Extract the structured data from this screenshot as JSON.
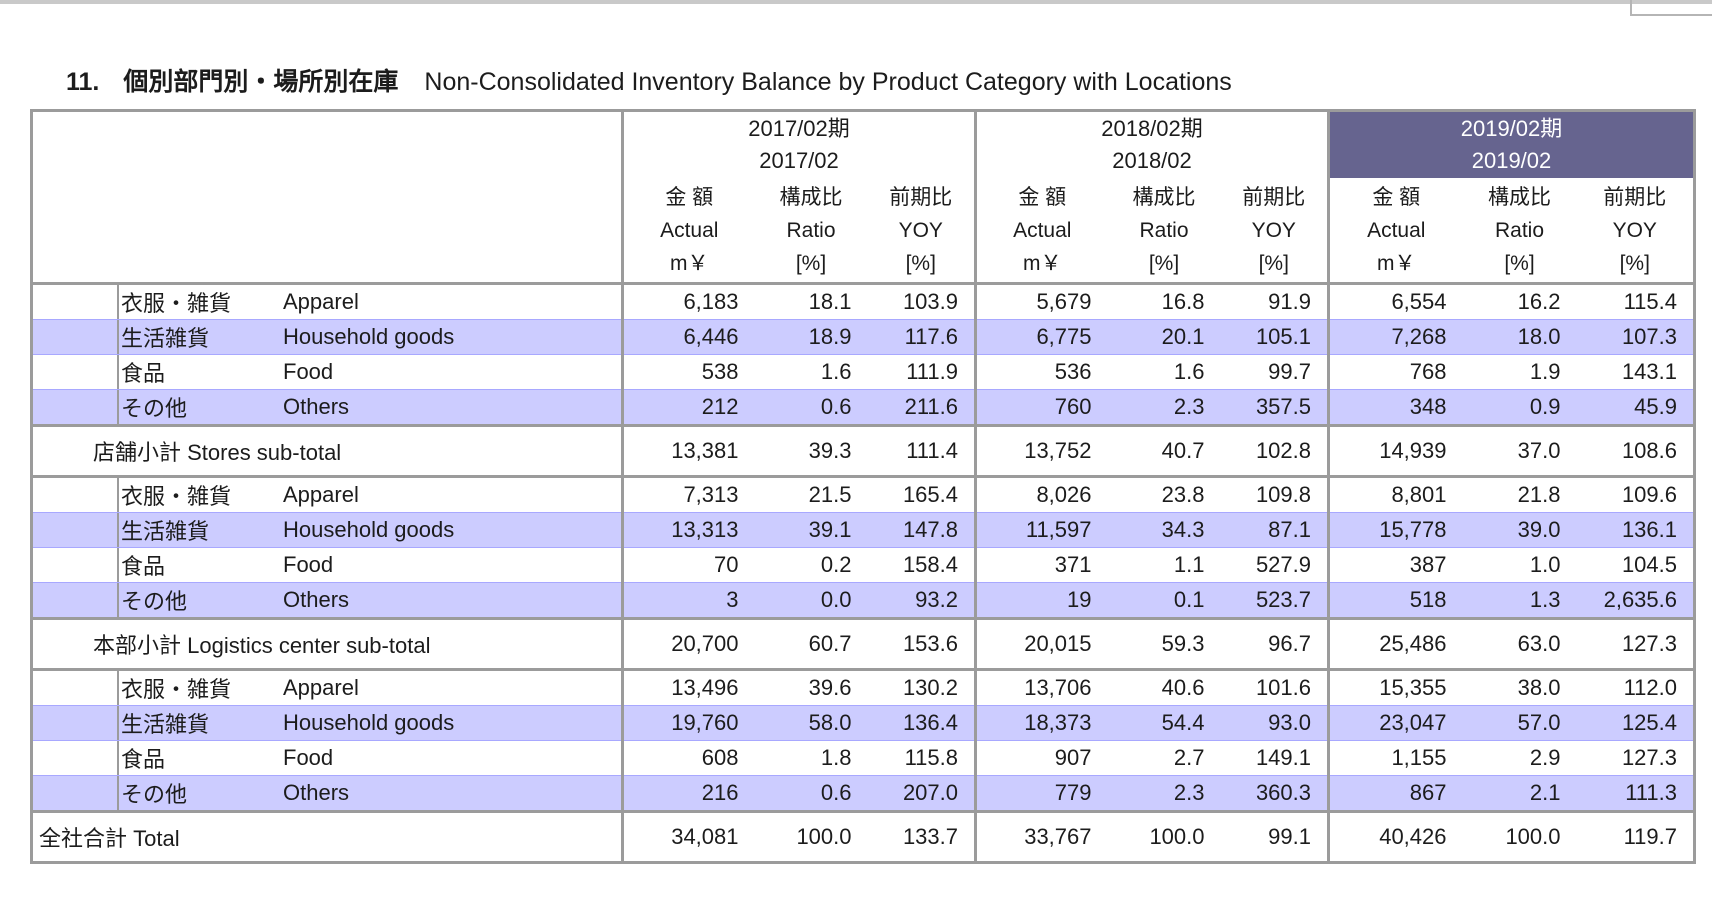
{
  "title": {
    "number": "11.",
    "jp": "個別部門別・場所別在庫",
    "en": "Non-Consolidated Inventory Balance by Product Category with Locations"
  },
  "periods": [
    {
      "jp": "2017/02期",
      "en": "2017/02",
      "highlight": false
    },
    {
      "jp": "2018/02期",
      "en": "2018/02",
      "highlight": false
    },
    {
      "jp": "2019/02期",
      "en": "2019/02",
      "highlight": true
    }
  ],
  "columns": [
    {
      "jp": "金 額",
      "en": "Actual",
      "unit": "m￥"
    },
    {
      "jp": "構成比",
      "en": "Ratio",
      "unit": "[%]"
    },
    {
      "jp": "前期比",
      "en": "YOY",
      "unit": "[%]"
    }
  ],
  "groups": [
    {
      "rows": [
        {
          "jp": "衣服・雑貨",
          "en": "Apparel",
          "band": false,
          "values": [
            "6,183",
            "18.1",
            "103.9",
            "5,679",
            "16.8",
            "91.9",
            "6,554",
            "16.2",
            "115.4"
          ]
        },
        {
          "jp": "生活雑貨",
          "en": "Household goods",
          "band": true,
          "values": [
            "6,446",
            "18.9",
            "117.6",
            "6,775",
            "20.1",
            "105.1",
            "7,268",
            "18.0",
            "107.3"
          ]
        },
        {
          "jp": "食品",
          "en": "Food",
          "band": false,
          "values": [
            "538",
            "1.6",
            "111.9",
            "536",
            "1.6",
            "99.7",
            "768",
            "1.9",
            "143.1"
          ]
        },
        {
          "jp": "その他",
          "en": "Others",
          "band": true,
          "values": [
            "212",
            "0.6",
            "211.6",
            "760",
            "2.3",
            "357.5",
            "348",
            "0.9",
            "45.9"
          ]
        }
      ],
      "subtotal": {
        "label": "店舗小計 Stores sub-total",
        "values": [
          "13,381",
          "39.3",
          "111.4",
          "13,752",
          "40.7",
          "102.8",
          "14,939",
          "37.0",
          "108.6"
        ]
      }
    },
    {
      "rows": [
        {
          "jp": "衣服・雑貨",
          "en": "Apparel",
          "band": false,
          "values": [
            "7,313",
            "21.5",
            "165.4",
            "8,026",
            "23.8",
            "109.8",
            "8,801",
            "21.8",
            "109.6"
          ]
        },
        {
          "jp": "生活雑貨",
          "en": "Household goods",
          "band": true,
          "values": [
            "13,313",
            "39.1",
            "147.8",
            "11,597",
            "34.3",
            "87.1",
            "15,778",
            "39.0",
            "136.1"
          ]
        },
        {
          "jp": "食品",
          "en": "Food",
          "band": false,
          "values": [
            "70",
            "0.2",
            "158.4",
            "371",
            "1.1",
            "527.9",
            "387",
            "1.0",
            "104.5"
          ]
        },
        {
          "jp": "その他",
          "en": "Others",
          "band": true,
          "values": [
            "3",
            "0.0",
            "93.2",
            "19",
            "0.1",
            "523.7",
            "518",
            "1.3",
            "2,635.6"
          ]
        }
      ],
      "subtotal": {
        "label": "本部小計 Logistics center sub-total",
        "values": [
          "20,700",
          "60.7",
          "153.6",
          "20,015",
          "59.3",
          "96.7",
          "25,486",
          "63.0",
          "127.3"
        ]
      }
    },
    {
      "rows": [
        {
          "jp": "衣服・雑貨",
          "en": "Apparel",
          "band": false,
          "values": [
            "13,496",
            "39.6",
            "130.2",
            "13,706",
            "40.6",
            "101.6",
            "15,355",
            "38.0",
            "112.0"
          ]
        },
        {
          "jp": "生活雑貨",
          "en": "Household goods",
          "band": true,
          "values": [
            "19,760",
            "58.0",
            "136.4",
            "18,373",
            "54.4",
            "93.0",
            "23,047",
            "57.0",
            "125.4"
          ]
        },
        {
          "jp": "食品",
          "en": "Food",
          "band": false,
          "values": [
            "608",
            "1.8",
            "115.8",
            "907",
            "2.7",
            "149.1",
            "1,155",
            "2.9",
            "127.3"
          ]
        },
        {
          "jp": "その他",
          "en": "Others",
          "band": true,
          "values": [
            "216",
            "0.6",
            "207.0",
            "779",
            "2.3",
            "360.3",
            "867",
            "2.1",
            "111.3"
          ]
        }
      ],
      "subtotal": {
        "label": "全社合計 Total",
        "values": [
          "34,081",
          "100.0",
          "133.7",
          "33,767",
          "100.0",
          "99.1",
          "40,426",
          "100.0",
          "119.7"
        ]
      }
    }
  ],
  "colors": {
    "header_highlight": "#66648f",
    "row_band": "#ccccff",
    "grid": "#9b9b9b"
  }
}
